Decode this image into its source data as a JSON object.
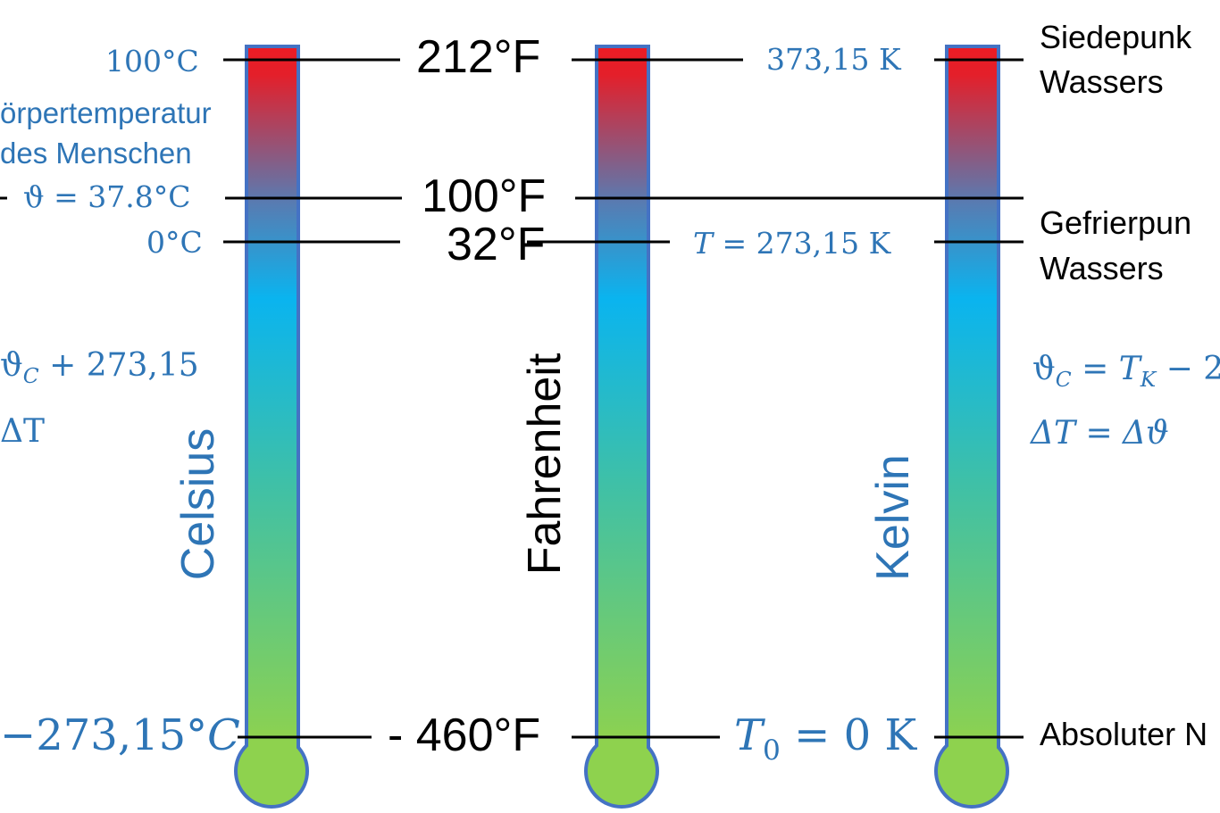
{
  "colors": {
    "tube_top": "#ec1c24",
    "tube_mid": "#0ab4ef",
    "tube_bottom": "#8ed24e",
    "tube_border": "#4472c4",
    "text_blue": "#2e75b6",
    "text_black": "#000000"
  },
  "scales": {
    "celsius": {
      "name": "Celsius",
      "boiling": "100°C",
      "body_label_line1": "örpertemperatur",
      "body_label_line2": "des Menschen",
      "body_temp": "ϑ = 37.8°C",
      "freezing": "0°C",
      "formula_1": "ϑ",
      "formula_1_sub": "C",
      "formula_1_rest": " + 273,15",
      "formula_2": "ΔT",
      "absolute_zero": "−273,15°",
      "absolute_zero_unit": "C"
    },
    "fahrenheit": {
      "name": "Fahrenheit",
      "boiling": "212°F",
      "body_temp": "100°F",
      "freezing": "32°F",
      "absolute_zero": "- 460°F"
    },
    "kelvin": {
      "name": "Kelvin",
      "boiling": "373,15 K",
      "freezing_var": "T",
      "freezing_rest": " = 273,15 K",
      "formula_1_lhs": "ϑ",
      "formula_1_lhs_sub": "C",
      "formula_1_mid": " = ",
      "formula_1_var": "T",
      "formula_1_var_sub": "K",
      "formula_1_rest": " − 2",
      "formula_2": "ΔT = Δϑ",
      "absolute_zero_var": "T",
      "absolute_zero_sub": "0",
      "absolute_zero_rest": " = 0 K"
    }
  },
  "right_labels": {
    "boiling_line1": "Siedepunk",
    "boiling_line2": "Wassers",
    "freezing_line1": "Gefrierpun",
    "freezing_line2": "Wassers",
    "absolute_zero": "Absoluter N"
  }
}
